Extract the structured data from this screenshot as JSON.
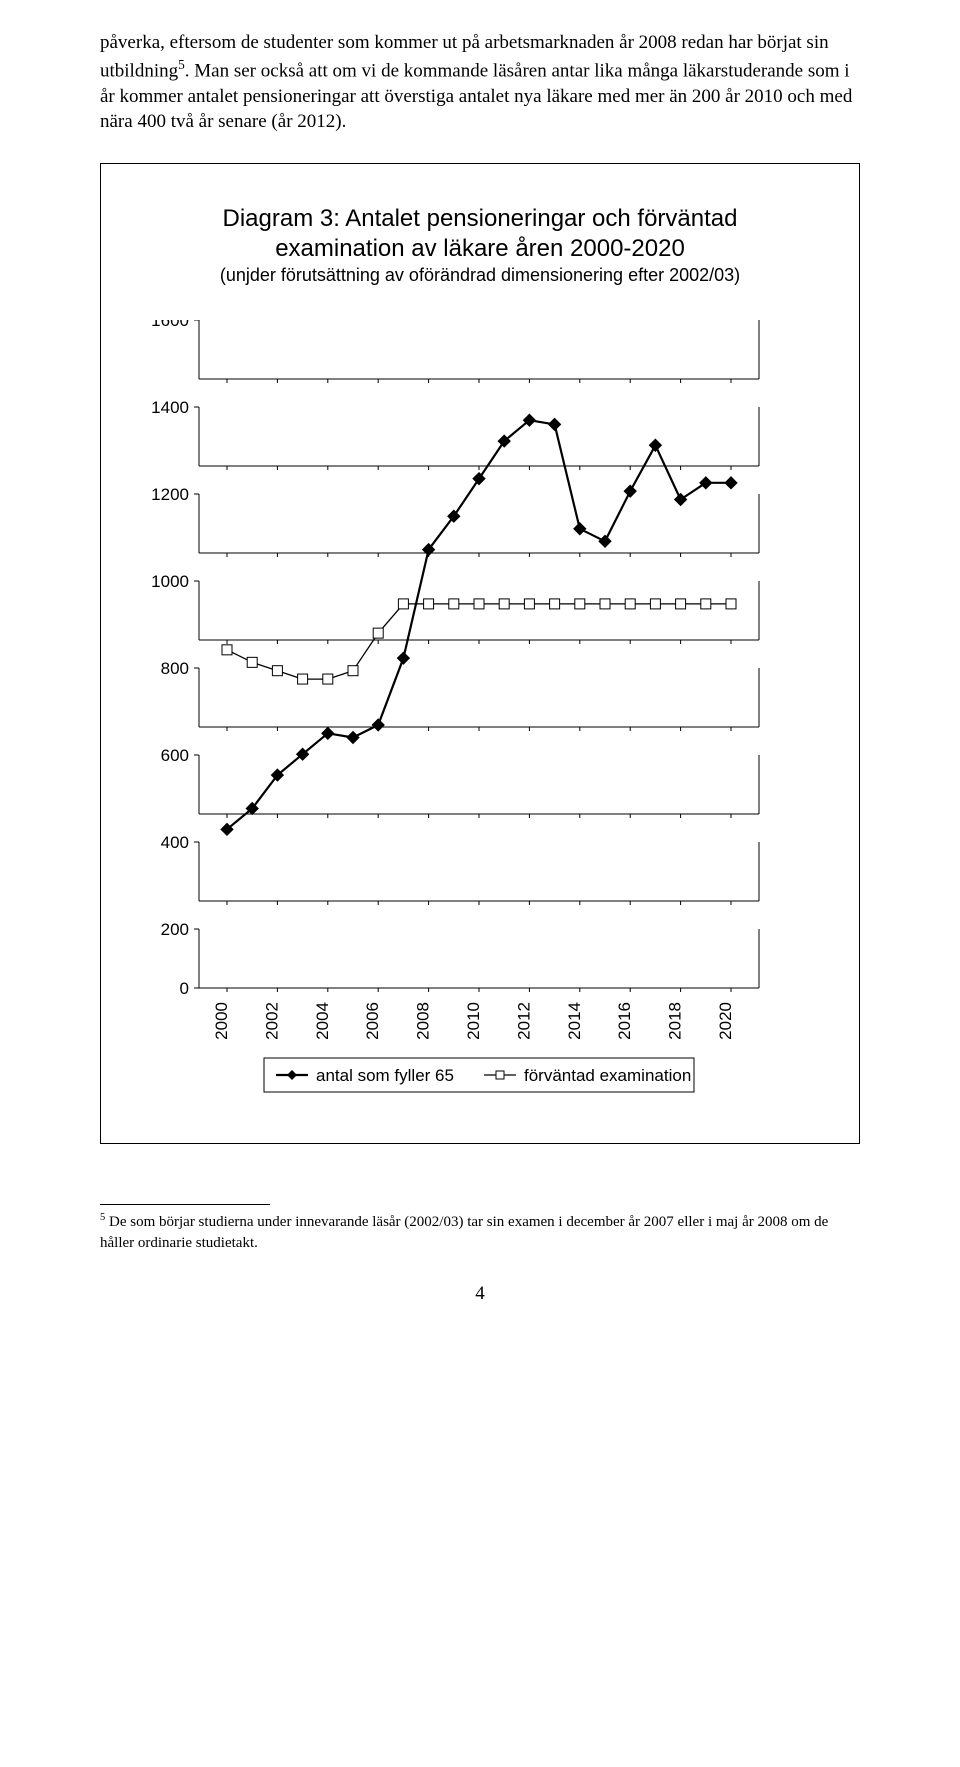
{
  "paragraph": {
    "frag1": "påverka, eftersom de studenter som kommer ut på arbetsmarknaden år 2008 redan har börjat sin utbildning",
    "sup1": "5",
    "frag2": ". Man ser också att om vi de kommande läsåren antar lika många läkarstuderande som i år kommer antalet pensioneringar att överstiga antalet nya läkare med mer än 200 år 2010 och med nära 400 två år senare (år 2012)."
  },
  "chart": {
    "title_line1": "Diagram 3: Antalet pensioneringar och förväntad",
    "title_line2": "examination av läkare åren 2000-2020",
    "title_line3": "(unjder förutsättning av oförändrad dimensionering efter 2002/03)",
    "ylim": [
      0,
      1600
    ],
    "yticks": [
      0,
      200,
      400,
      600,
      800,
      1000,
      1200,
      1400,
      1600
    ],
    "xticks": [
      2000,
      2002,
      2004,
      2006,
      2008,
      2010,
      2012,
      2014,
      2016,
      2018,
      2020
    ],
    "background_color": "#ffffff",
    "axis_color": "#000000",
    "series1": {
      "name": "antal som fyller 65",
      "color": "#000000",
      "marker": "diamond",
      "marker_size": 6,
      "line_width": 2.2,
      "years": [
        2000,
        2001,
        2002,
        2003,
        2004,
        2005,
        2006,
        2007,
        2008,
        2009,
        2010,
        2011,
        2012,
        2013,
        2014,
        2015,
        2016,
        2017,
        2018,
        2019,
        2020
      ],
      "values": [
        380,
        430,
        510,
        560,
        610,
        600,
        630,
        790,
        1050,
        1130,
        1220,
        1310,
        1360,
        1350,
        1100,
        1070,
        1190,
        1300,
        1170,
        1210,
        1210
      ]
    },
    "series2": {
      "name": "förväntad examination",
      "color": "#000000",
      "marker": "square",
      "marker_size": 5,
      "line_width": 1.3,
      "years": [
        2000,
        2001,
        2002,
        2003,
        2004,
        2005,
        2006,
        2007,
        2008,
        2009,
        2010,
        2011,
        2012,
        2013,
        2014,
        2015,
        2016,
        2017,
        2018,
        2019,
        2020
      ],
      "values": [
        810,
        780,
        760,
        740,
        740,
        760,
        850,
        920,
        920,
        920,
        920,
        920,
        920,
        920,
        920,
        920,
        920,
        920,
        920,
        920,
        920
      ]
    },
    "legend": {
      "items": [
        "antal som fyller 65",
        "förväntad examination"
      ]
    }
  },
  "footnote": {
    "sup": "5",
    "text": " De som börjar studierna under innevarande läsår (2002/03) tar sin examen i december år 2007 eller i maj år 2008 om de håller ordinarie studietakt."
  },
  "page_number": "4"
}
